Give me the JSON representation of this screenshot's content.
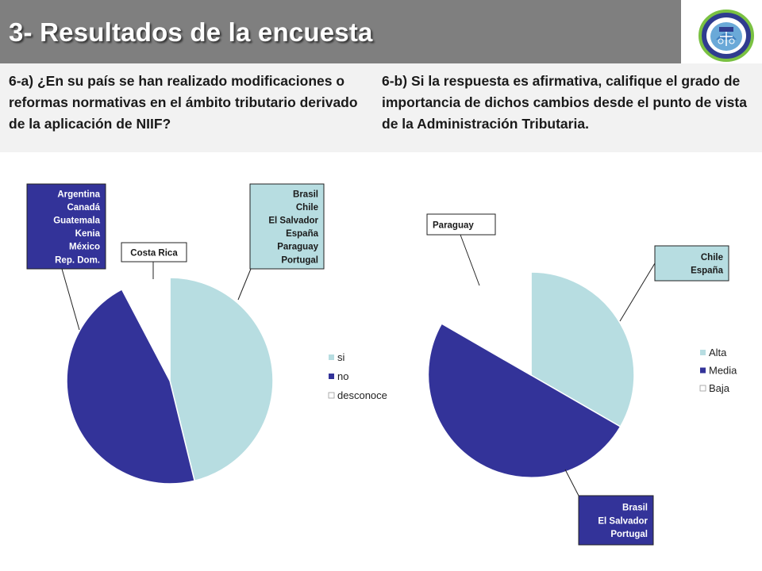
{
  "header": {
    "title": "3- Resultados de la encuesta"
  },
  "questions": {
    "left": "6-a) ¿En su país se han realizado modificaciones o reformas normativas en el ámbito tributario derivado de la aplicación de NIIF?",
    "right": "6-b) Si la respuesta es afirmativa, califique el grado de importancia de dichos cambios desde el punto de vista de la Administración Tributaria."
  },
  "chart_data": [
    {
      "type": "pie",
      "categories": [
        "si",
        "no",
        "desconoce"
      ],
      "values": [
        6,
        6,
        1
      ],
      "colors": [
        "#b7dde1",
        "#333399",
        "#ffffff"
      ],
      "legend": "right",
      "callouts": [
        {
          "lines": [
            "Brasil",
            "Chile",
            "El Salvador",
            "España",
            "Paraguay",
            "Portugal"
          ]
        },
        {
          "lines": [
            "Argentina",
            "Canadá",
            "Guatemala",
            "Kenia",
            "México",
            "Rep. Dom."
          ]
        },
        {
          "lines": [
            "Costa Rica"
          ]
        }
      ]
    },
    {
      "type": "pie",
      "categories": [
        "Alta",
        "Media",
        "Baja"
      ],
      "values": [
        2,
        3,
        1
      ],
      "colors": [
        "#b7dde1",
        "#333399",
        "#ffffff"
      ],
      "legend": "right",
      "callouts": [
        {
          "lines": [
            "Chile",
            "España"
          ]
        },
        {
          "lines": [
            "Brasil",
            "El Salvador",
            "Portugal"
          ]
        },
        {
          "lines": [
            "Paraguay"
          ]
        }
      ]
    }
  ]
}
